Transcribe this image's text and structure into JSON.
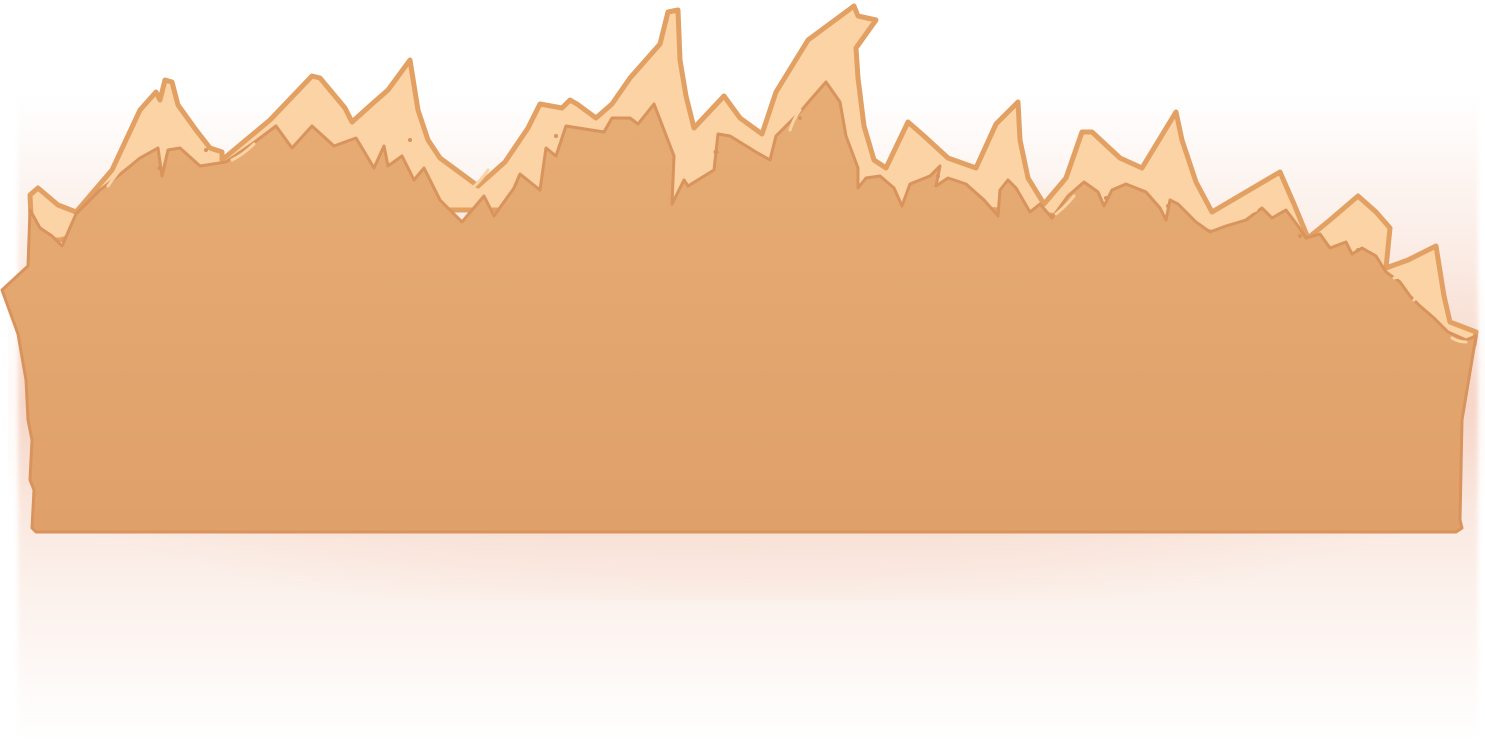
{
  "scene": {
    "subject": "flame-banner",
    "colors": {
      "background": "#ffffff",
      "glow": "#eea58a",
      "body": "#e2a56d",
      "body_top": "#e6ae74",
      "outline": "#d8925a",
      "highlight": "#fbd3a4"
    }
  }
}
